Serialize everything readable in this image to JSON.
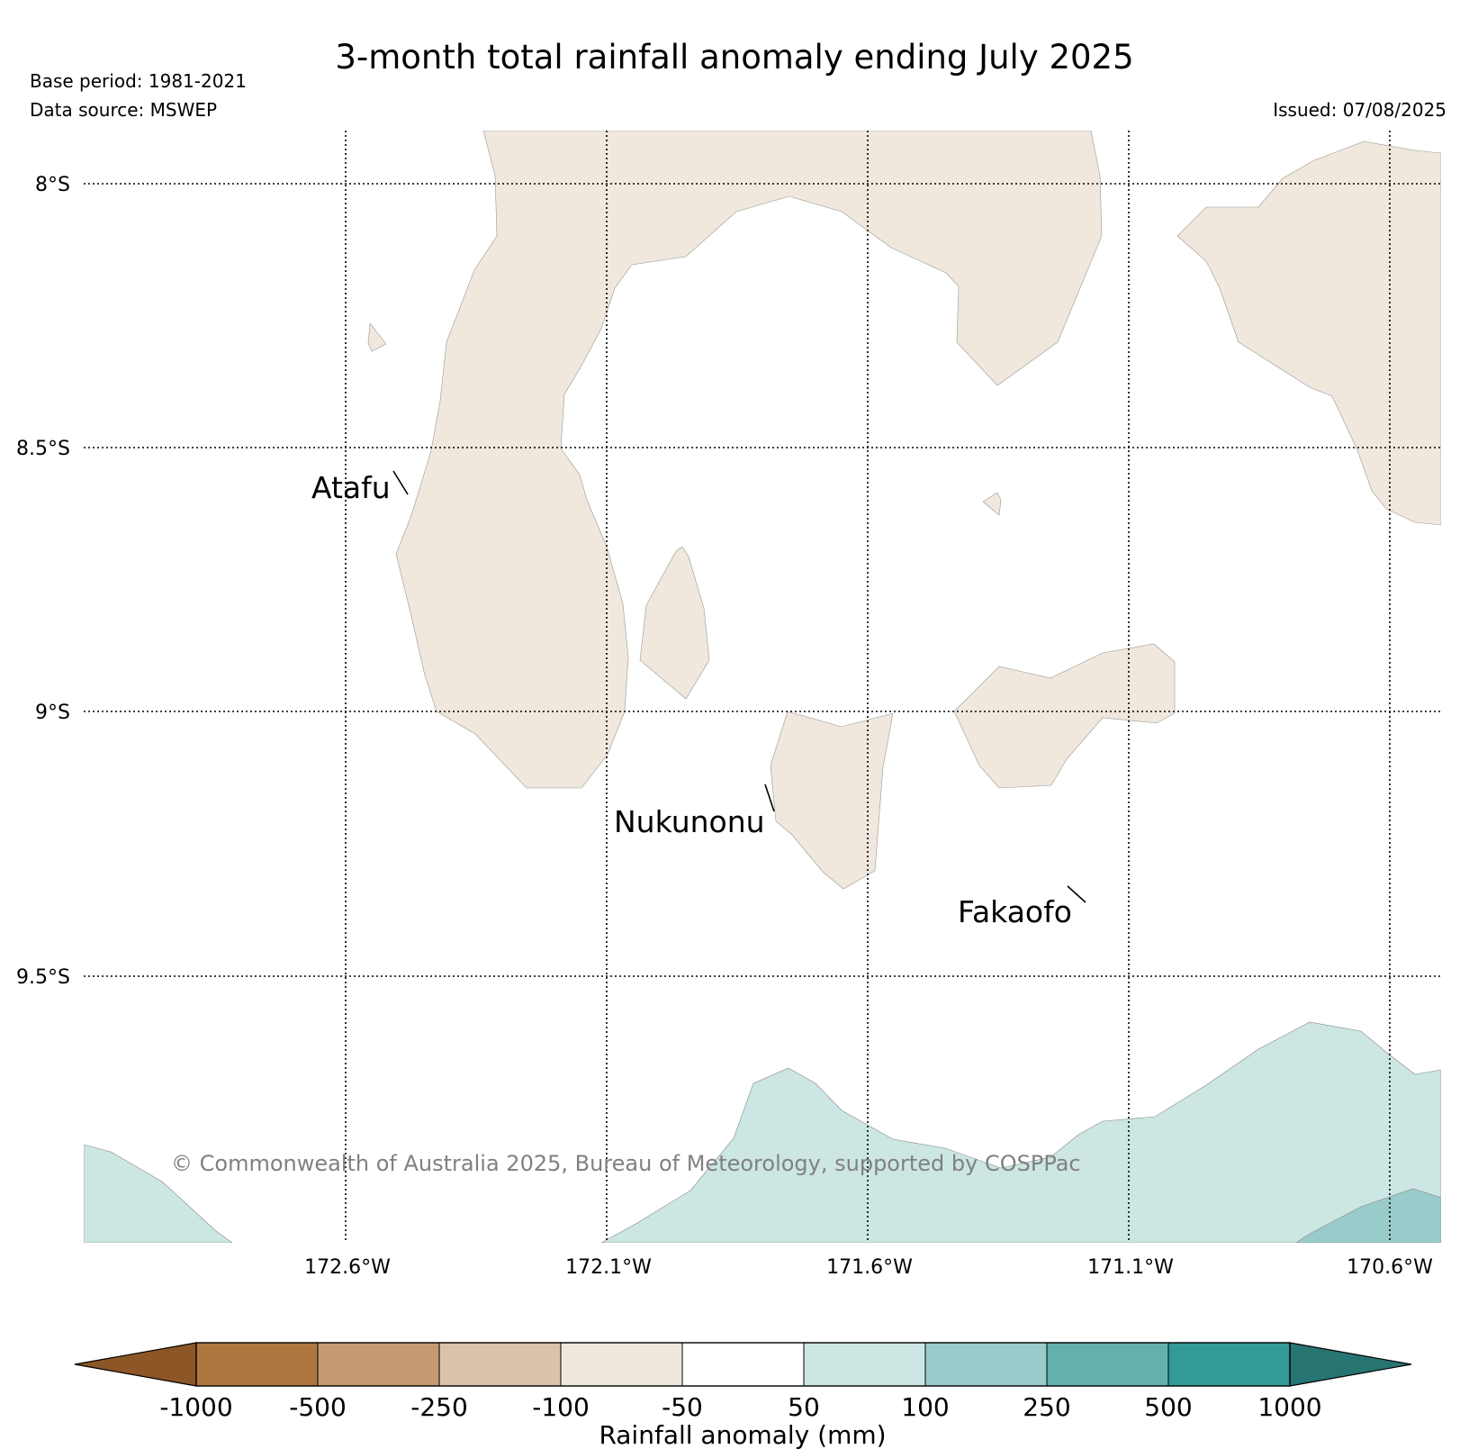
{
  "header": {
    "title": "3-month total rainfall anomaly ending July 2025",
    "base_period": "Base period: 1981-2021",
    "data_source": "Data source: MSWEP",
    "issued": "Issued: 07/08/2025"
  },
  "map": {
    "lat_labels": [
      "8°S",
      "8.5°S",
      "9°S",
      "9.5°S"
    ],
    "lon_labels": [
      "172.6°W",
      "172.1°W",
      "171.6°W",
      "171.1°W",
      "170.6°W"
    ],
    "places": [
      "Atafu",
      "Nukunonu",
      "Fakaofo"
    ],
    "copyright": "© Commonwealth of Australia 2025, Bureau of Meteorology, supported by COSPPac",
    "colors": {
      "light_brown": "#f0e7dd",
      "light_teal": "#cce6e4",
      "mid_teal": "#99cbca",
      "grid": "#000000"
    }
  },
  "colorbar": {
    "label": "Rainfall anomaly (mm)",
    "ticks": [
      "-1000",
      "-500",
      "-250",
      "-100",
      "-50",
      "50",
      "100",
      "250",
      "500",
      "1000"
    ],
    "colors": [
      "#8c5626",
      "#ad773f",
      "#c49b72",
      "#dbc2aa",
      "#f0e7dd",
      "#ffffff",
      "#cce6e4",
      "#99cbca",
      "#63b0af",
      "#339b97",
      "#277573"
    ]
  }
}
